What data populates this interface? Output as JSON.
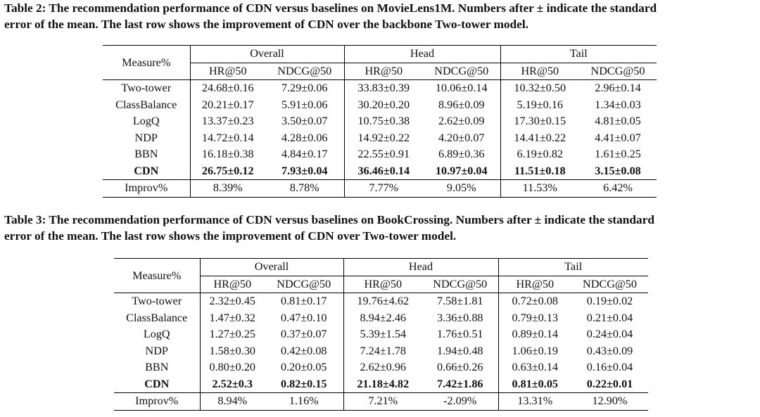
{
  "table2": {
    "caption_lines": [
      "Table 2: The recommendation performance of CDN versus baselines on MovieLens1M. Numbers after ± indicate the standard",
      "error of the mean. The last row shows the improvement of CDN over the backbone Two-tower model."
    ],
    "measure_label": "Measure%",
    "groups": [
      "Overall",
      "Head",
      "Tail"
    ],
    "subheaders": [
      "HR@50",
      "NDCG@50",
      "HR@50",
      "NDCG@50",
      "HR@50",
      "NDCG@50"
    ],
    "rows": [
      {
        "name": "Two-tower",
        "values": [
          "24.68±0.16",
          "7.29±0.06",
          "33.83±0.39",
          "10.06±0.14",
          "10.32±0.50",
          "2.96±0.14"
        ]
      },
      {
        "name": "ClassBalance",
        "values": [
          "20.21±0.17",
          "5.91±0.06",
          "30.20±0.20",
          "8.96±0.09",
          "5.19±0.16",
          "1.34±0.03"
        ]
      },
      {
        "name": "LogQ",
        "values": [
          "13.37±0.23",
          "3.50±0.07",
          "10.75±0.38",
          "2.62±0.09",
          "17.30±0.15",
          "4.81±0.05"
        ]
      },
      {
        "name": "NDP",
        "values": [
          "14.72±0.14",
          "4.28±0.06",
          "14.92±0.22",
          "4.20±0.07",
          "14.41±0.22",
          "4.41±0.07"
        ]
      },
      {
        "name": "BBN",
        "values": [
          "16.18±0.38",
          "4.84±0.17",
          "22.55±0.91",
          "6.89±0.36",
          "6.19±0.82",
          "1.61±0.25"
        ]
      },
      {
        "name": "CDN",
        "values": [
          "26.75±0.12",
          "7.93±0.04",
          "36.46±0.14",
          "10.97±0.04",
          "11.51±0.18",
          "3.15±0.08"
        ]
      }
    ],
    "improv": {
      "name": "Improv%",
      "values": [
        "8.39%",
        "8.78%",
        "7.77%",
        "9.05%",
        "11.53%",
        "6.42%"
      ]
    }
  },
  "table3": {
    "caption_lines": [
      "Table 3: The recommendation performance of CDN versus baselines on BookCrossing. Numbers after ± indicate the standard",
      "error of the mean. The last row shows the improvement of CDN over Two-tower model."
    ],
    "measure_label": "Measure%",
    "groups": [
      "Overall",
      "Head",
      "Tail"
    ],
    "subheaders": [
      "HR@50",
      "NDCG@50",
      "HR@50",
      "NDCG@50",
      "HR@50",
      "NDCG@50"
    ],
    "rows": [
      {
        "name": "Two-tower",
        "values": [
          "2.32±0.45",
          "0.81±0.17",
          "19.76±4.62",
          "7.58±1.81",
          "0.72±0.08",
          "0.19±0.02"
        ]
      },
      {
        "name": "ClassBalance",
        "values": [
          "1.47±0.32",
          "0.47±0.10",
          "8.94±2.46",
          "3.36±0.88",
          "0.79±0.13",
          "0.21±0.04"
        ]
      },
      {
        "name": "LogQ",
        "values": [
          "1.27±0.25",
          "0.37±0.07",
          "5.39±1.54",
          "1.76±0.51",
          "0.89±0.14",
          "0.24±0.04"
        ]
      },
      {
        "name": "NDP",
        "values": [
          "1.58±0.30",
          "0.42±0.08",
          "7.24±1.78",
          "1.94±0.48",
          "1.06±0.19",
          "0.43±0.09"
        ]
      },
      {
        "name": "BBN",
        "values": [
          "0.80±0.20",
          "0.20±0.05",
          "2.62±0.96",
          "0.66±0.26",
          "0.63±0.14",
          "0.16±0.04"
        ]
      },
      {
        "name": "CDN",
        "values": [
          "2.52±0.3",
          "0.82±0.15",
          "21.18±4.82",
          "7.42±1.86",
          "0.81±0.05",
          "0.22±0.01"
        ]
      }
    ],
    "improv": {
      "name": "Improv%",
      "values": [
        "8.94%",
        "1.16%",
        "7.21%",
        "-2.09%",
        "13.31%",
        "12.90%"
      ]
    }
  }
}
